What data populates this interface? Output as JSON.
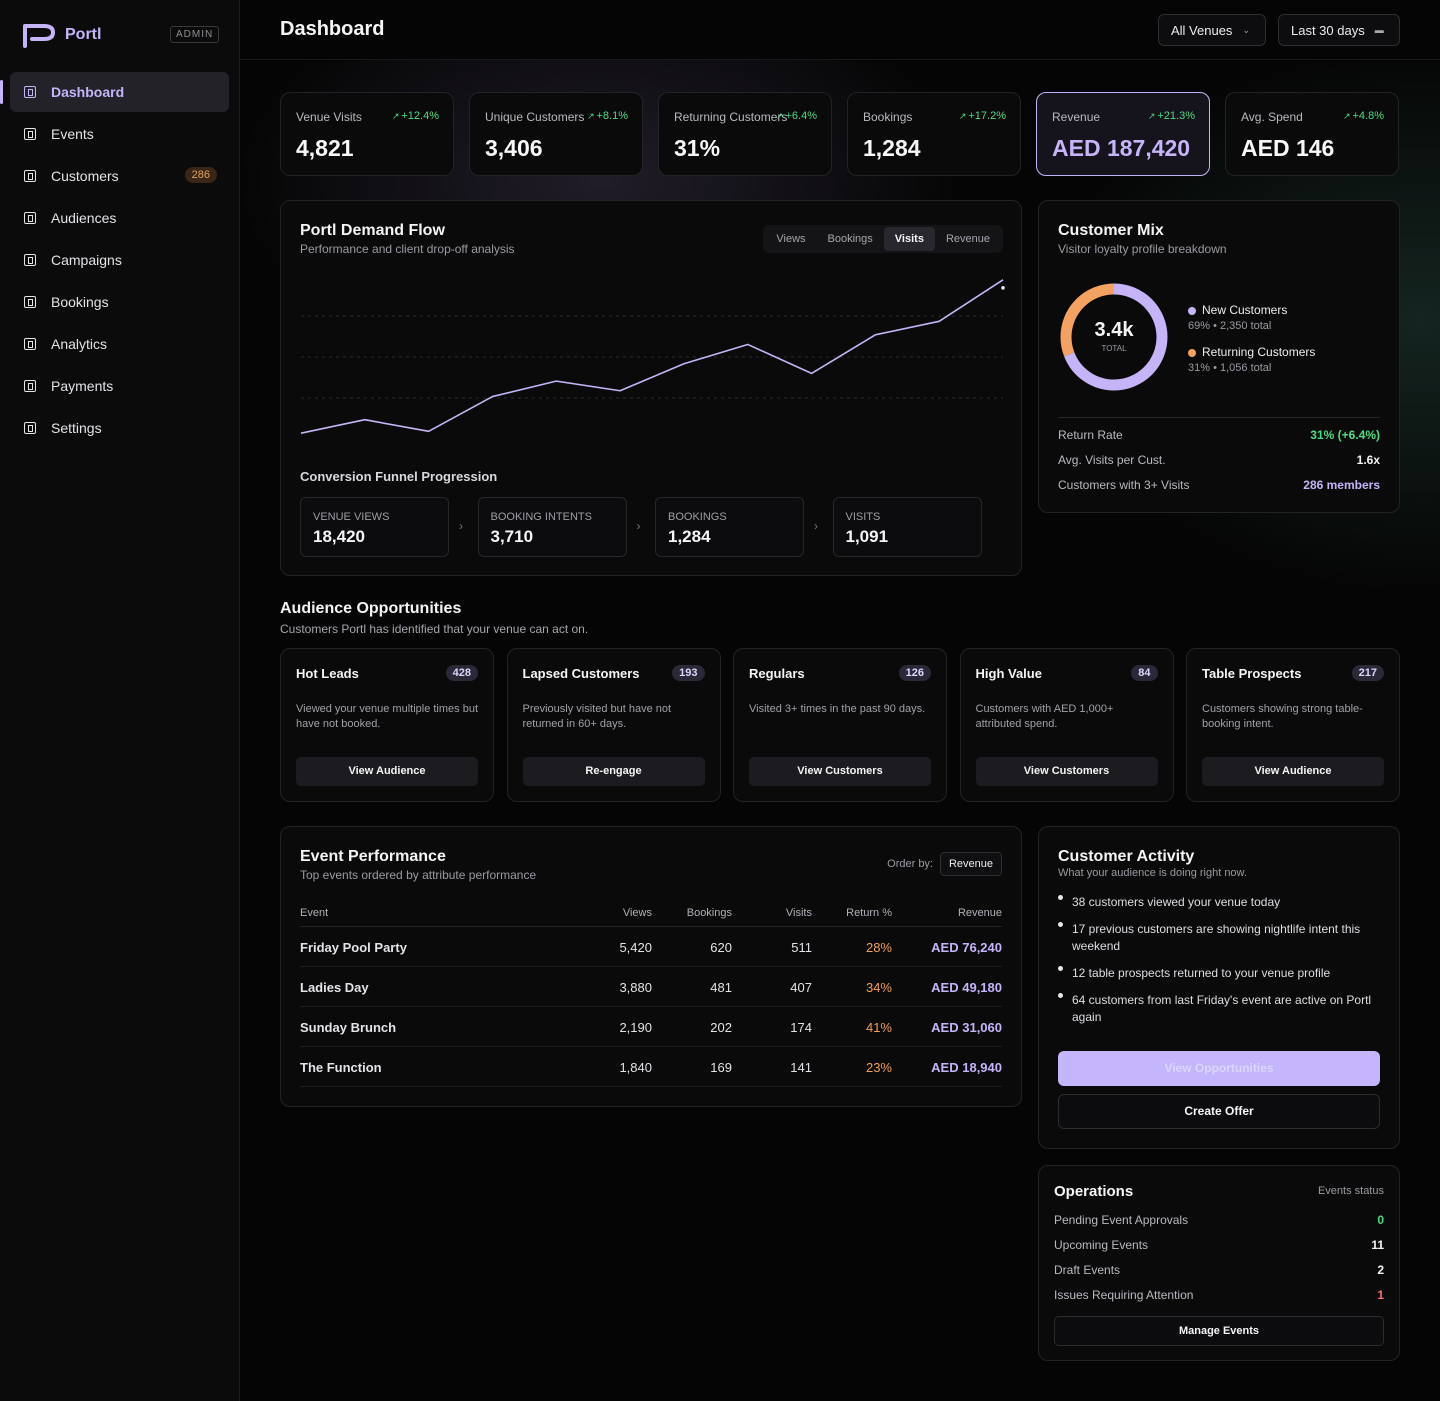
{
  "brand": {
    "name": "Portl",
    "badge": "ADMIN"
  },
  "sidebar": {
    "items": [
      {
        "label": "Dashboard",
        "icon": "dashboard-icon",
        "active": true
      },
      {
        "label": "Events",
        "icon": "events-icon"
      },
      {
        "label": "Customers",
        "icon": "customers-icon",
        "badge": "286"
      },
      {
        "label": "Audiences",
        "icon": "audiences-icon"
      },
      {
        "label": "Campaigns",
        "icon": "campaigns-icon"
      },
      {
        "label": "Bookings",
        "icon": "bookings-icon"
      },
      {
        "label": "Analytics",
        "icon": "analytics-icon"
      },
      {
        "label": "Payments",
        "icon": "payments-icon"
      },
      {
        "label": "Settings",
        "icon": "settings-icon"
      }
    ]
  },
  "header": {
    "title": "Dashboard",
    "venue_select": "All Venues",
    "date_range": "Last 30 days"
  },
  "kpis": [
    {
      "label": "Venue Visits",
      "delta": "+12.4%",
      "value": "4,821"
    },
    {
      "label": "Unique Customers",
      "delta": "+8.1%",
      "value": "3,406"
    },
    {
      "label": "Returning Customers",
      "delta": "+6.4%",
      "value": "31%"
    },
    {
      "label": "Bookings",
      "delta": "+17.2%",
      "value": "1,284"
    },
    {
      "label": "Revenue",
      "delta": "+21.3%",
      "value": "AED 187,420",
      "active": true
    },
    {
      "label": "Avg. Spend",
      "delta": "+4.8%",
      "value": "AED 146"
    }
  ],
  "demand": {
    "title": "Portl Demand Flow",
    "subtitle": "Performance and client drop-off analysis",
    "tabs": [
      "Views",
      "Bookings",
      "Visits",
      "Revenue"
    ],
    "active_tab": "Visits",
    "funnel_title": "Conversion Funnel Progression",
    "funnel": [
      {
        "label": "VENUE VIEWS",
        "value": "18,420"
      },
      {
        "label": "BOOKING INTENTS",
        "value": "3,710"
      },
      {
        "label": "BOOKINGS",
        "value": "1,284"
      },
      {
        "label": "VISITS",
        "value": "1,091"
      }
    ]
  },
  "chart_data": {
    "type": "line",
    "series": [
      {
        "values": [
          6,
          20,
          8,
          44,
          60,
          50,
          78,
          98,
          68,
          108,
          122,
          165
        ]
      }
    ],
    "ylim": [
      0,
      170
    ],
    "grid": true,
    "color": "#c6b4f8"
  },
  "mix": {
    "title": "Customer Mix",
    "subtitle": "Visitor loyalty profile breakdown",
    "total": "3.4k",
    "total_label": "TOTAL",
    "segments": [
      {
        "name": "New Customers",
        "detail": "69% • 2,350 total",
        "share": 0.69,
        "color": "#c6b4f8"
      },
      {
        "name": "Returning Customers",
        "detail": "31% • 1,056 total",
        "share": 0.31,
        "color": "#f4a261"
      }
    ],
    "stats": [
      {
        "label": "Return Rate",
        "value": "31% (+6.4%)",
        "color": "#4ade80"
      },
      {
        "label": "Avg. Visits per Cust.",
        "value": "1.6x",
        "color": "#f5f5f7"
      },
      {
        "label": "Customers with 3+ Visits",
        "value": "286 members",
        "color": "#c6b4f8"
      }
    ]
  },
  "audience": {
    "title": "Audience Opportunities",
    "subtitle": "Customers Portl has identified that your venue can act on.",
    "cards": [
      {
        "title": "Hot Leads",
        "count": "428",
        "desc": "Viewed your venue multiple times but have not booked.",
        "button": "View Audience"
      },
      {
        "title": "Lapsed Customers",
        "count": "193",
        "desc": "Previously visited but have not returned in 60+ days.",
        "button": "Re-engage"
      },
      {
        "title": "Regulars",
        "count": "126",
        "desc": "Visited 3+ times in the past 90 days.",
        "button": "View Customers"
      },
      {
        "title": "High Value",
        "count": "84",
        "desc": "Customers with AED 1,000+ attributed spend.",
        "button": "View Customers"
      },
      {
        "title": "Table Prospects",
        "count": "217",
        "desc": "Customers showing strong table-booking intent.",
        "button": "View Audience"
      }
    ]
  },
  "events": {
    "title": "Event Performance",
    "subtitle": "Top events ordered by attribute performance",
    "order_label": "Order by:",
    "order_value": "Revenue",
    "columns": [
      "Event",
      "Views",
      "Bookings",
      "Visits",
      "Return %",
      "Revenue"
    ],
    "rows": [
      [
        "Friday Pool Party",
        "5,420",
        "620",
        "511",
        "28%",
        "AED 76,240"
      ],
      [
        "Ladies Day",
        "3,880",
        "481",
        "407",
        "34%",
        "AED 49,180"
      ],
      [
        "Sunday Brunch",
        "2,190",
        "202",
        "174",
        "41%",
        "AED 31,060"
      ],
      [
        "The Function",
        "1,840",
        "169",
        "141",
        "23%",
        "AED 18,940"
      ]
    ]
  },
  "activity": {
    "title": "Customer Activity",
    "subtitle": "What your audience is doing right now.",
    "items": [
      "38 customers viewed your venue today",
      "17 previous customers are showing nightlife intent this weekend",
      "12 table prospects returned to your venue profile",
      "64 customers from last Friday's event are active on Portl again"
    ],
    "primary_button": "View Opportunities",
    "secondary_button": "Create Offer"
  },
  "operations": {
    "title": "Operations",
    "status_label": "Events status",
    "rows": [
      {
        "label": "Pending Event Approvals",
        "value": "0",
        "color": "#4ade80"
      },
      {
        "label": "Upcoming Events",
        "value": "11",
        "color": "#f5f5f7"
      },
      {
        "label": "Draft Events",
        "value": "2",
        "color": "#f5f5f7"
      },
      {
        "label": "Issues Requiring Attention",
        "value": "1",
        "color": "#f87171"
      }
    ],
    "button": "Manage Events"
  }
}
